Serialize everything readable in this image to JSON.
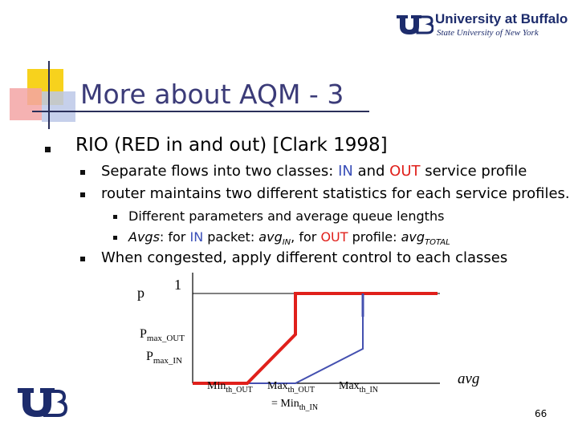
{
  "header": {
    "university_name": "University at Buffalo",
    "subtitle": "State University of New York"
  },
  "slide": {
    "title": "More about AQM - 3",
    "bullet1": "RIO (RED in and out) [Clark 1998]",
    "sub1": {
      "pre": "Separate flows into two classes: ",
      "in": "IN",
      "mid": " and ",
      "out": "OUT",
      "post": " service profile"
    },
    "sub2": "router maintains two different statistics for each service profiles.",
    "subsub1": "Different parameters and average queue lengths",
    "subsub2": {
      "a": "Avgs",
      "b": ": for ",
      "in": "IN",
      "c": " packet: ",
      "d": "avg",
      "d_sub": "IN",
      "e": ", for ",
      "out": "OUT",
      "f": " profile: ",
      "g": "avg",
      "g_sub": "TOTAL"
    },
    "sub3": "When congested, apply different control to each classes",
    "page_number": "66"
  },
  "diagram": {
    "p_label": "p",
    "one_label": "1",
    "pmax_out": {
      "base": "P",
      "sub": "max_OUT"
    },
    "pmax_in": {
      "base": "P",
      "sub": "max_IN"
    },
    "minth_out": {
      "base": "Min",
      "sub": "th_OUT"
    },
    "maxth_out": {
      "base": "Max",
      "sub": "th_OUT"
    },
    "eq_minth_in": {
      "base": "= Min",
      "sub": "th_IN"
    },
    "maxth_in": {
      "base": "Max",
      "sub": "th_IN"
    },
    "avg_label": "avg",
    "colors": {
      "out_curve": "#e0201b",
      "in_curve": "#4450b0",
      "axis": "#000000"
    }
  }
}
